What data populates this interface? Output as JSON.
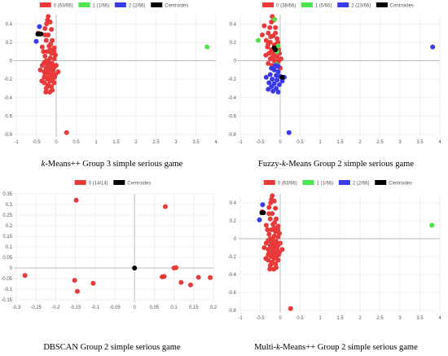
{
  "captions": [
    {
      "prefix": "",
      "italic": "k",
      "suffix": "-Means++ Group 3 simple serious game"
    },
    {
      "prefix": "Fuzzy-",
      "italic": "k",
      "suffix": "-Means Group 2 simple serious game"
    },
    {
      "prefix": "DBSCAN Group 2 simple serious game",
      "italic": "",
      "suffix": ""
    },
    {
      "prefix": "Multi-",
      "italic": "k",
      "suffix": "-Means++ Group 2 simple serious game"
    }
  ],
  "colors": {
    "cluster0": "#e83a3a",
    "cluster1": "#4ce64c",
    "cluster2": "#3a3ae8",
    "centroid": "#000000"
  },
  "chart_data": [
    {
      "type": "scatter",
      "title": "",
      "xlabel": "",
      "ylabel": "",
      "xlim": [
        -1,
        4
      ],
      "ylim": [
        -0.8,
        0.5
      ],
      "xticks": [
        -1,
        -0.5,
        0,
        0.5,
        1,
        1.5,
        2,
        2.5,
        3,
        3.5,
        4
      ],
      "yticks": [
        -0.8,
        -0.6,
        -0.4,
        -0.2,
        0,
        0.2,
        0.4
      ],
      "legend_position": "top-center",
      "grid": true,
      "series": [
        {
          "name": "0 (63/66)",
          "color": "#e83a3a",
          "points": [
            [
              -0.2,
              0.48
            ],
            [
              -0.22,
              0.44
            ],
            [
              -0.15,
              0.42
            ],
            [
              -0.28,
              0.35
            ],
            [
              -0.12,
              0.34
            ],
            [
              -0.2,
              0.28
            ],
            [
              -0.1,
              0.22
            ],
            [
              -0.25,
              0.22
            ],
            [
              -0.18,
              0.16
            ],
            [
              -0.05,
              0.14
            ],
            [
              -0.22,
              0.1
            ],
            [
              -0.12,
              0.08
            ],
            [
              -0.28,
              0.05
            ],
            [
              -0.15,
              0.03
            ],
            [
              -0.05,
              0.02
            ],
            [
              -0.2,
              0.0
            ],
            [
              -0.3,
              -0.02
            ],
            [
              -0.1,
              -0.03
            ],
            [
              -0.22,
              -0.05
            ],
            [
              -0.15,
              -0.06
            ],
            [
              -0.05,
              -0.07
            ],
            [
              -0.25,
              -0.08
            ],
            [
              -0.18,
              -0.1
            ],
            [
              -0.08,
              -0.11
            ],
            [
              -0.3,
              -0.12
            ],
            [
              -0.2,
              -0.13
            ],
            [
              -0.12,
              -0.15
            ],
            [
              -0.02,
              -0.15
            ],
            [
              -0.28,
              -0.16
            ],
            [
              -0.18,
              -0.18
            ],
            [
              -0.08,
              -0.19
            ],
            [
              -0.22,
              -0.2
            ],
            [
              -0.15,
              -0.22
            ],
            [
              -0.3,
              -0.24
            ],
            [
              -0.05,
              -0.24
            ],
            [
              -0.2,
              -0.26
            ],
            [
              -0.12,
              -0.28
            ],
            [
              -0.25,
              -0.3
            ],
            [
              -0.1,
              -0.32
            ],
            [
              -0.32,
              0.1
            ],
            [
              -0.35,
              -0.05
            ],
            [
              -0.4,
              -0.1
            ],
            [
              -0.26,
              -0.34
            ],
            [
              0.05,
              -0.12
            ],
            [
              -0.02,
              0.06
            ],
            [
              -0.35,
              0.15
            ],
            [
              -0.15,
              0.12
            ],
            [
              -0.1,
              -0.2
            ],
            [
              -0.25,
              0.0
            ],
            [
              -0.18,
              -0.02
            ],
            [
              0.0,
              -0.05
            ],
            [
              -0.08,
              -0.1
            ],
            [
              -0.3,
              -0.18
            ],
            [
              -0.22,
              -0.28
            ],
            [
              -0.14,
              0.18
            ],
            [
              -0.04,
              -0.18
            ],
            [
              -0.36,
              -0.22
            ],
            [
              -0.16,
              -0.34
            ],
            [
              -0.28,
              0.28
            ],
            [
              -0.06,
              0.1
            ],
            [
              -0.24,
              0.4
            ],
            [
              0.26,
              -0.78
            ],
            [
              -0.45,
              0.3
            ]
          ]
        },
        {
          "name": "1 (1/66)",
          "color": "#4ce64c",
          "points": [
            [
              3.78,
              0.15
            ]
          ]
        },
        {
          "name": "2 (2/66)",
          "color": "#3a3ae8",
          "points": [
            [
              -0.42,
              0.37
            ],
            [
              -0.5,
              0.21
            ]
          ]
        },
        {
          "name": "Centroides",
          "color": "#000000",
          "points": [
            [
              -0.46,
              0.29
            ],
            [
              -0.42,
              0.29
            ],
            [
              -0.38,
              0.29
            ]
          ]
        }
      ]
    },
    {
      "type": "scatter",
      "title": "",
      "xlabel": "",
      "ylabel": "",
      "xlim": [
        -1,
        4
      ],
      "ylim": [
        -0.8,
        0.5
      ],
      "xticks": [
        -1,
        -0.5,
        0,
        0.5,
        1,
        1.5,
        2,
        2.5,
        3,
        3.5,
        4
      ],
      "yticks": [
        -0.8,
        -0.6,
        -0.4,
        -0.2,
        0,
        0.2,
        0.4
      ],
      "legend_position": "top-center",
      "grid": true,
      "series": [
        {
          "name": "0 (38/66)",
          "color": "#e83a3a",
          "points": [
            [
              -0.2,
              0.48
            ],
            [
              -0.22,
              0.42
            ],
            [
              -0.12,
              0.36
            ],
            [
              -0.3,
              0.3
            ],
            [
              -0.18,
              0.27
            ],
            [
              -0.08,
              0.24
            ],
            [
              -0.25,
              0.2
            ],
            [
              -0.15,
              0.17
            ],
            [
              -0.05,
              0.14
            ],
            [
              -0.22,
              0.12
            ],
            [
              -0.12,
              0.1
            ],
            [
              -0.28,
              0.08
            ],
            [
              -0.02,
              0.08
            ],
            [
              -0.18,
              0.05
            ],
            [
              -0.08,
              0.04
            ],
            [
              -0.25,
              0.02
            ],
            [
              -0.15,
              0.0
            ],
            [
              -0.05,
              -0.01
            ],
            [
              -0.3,
              -0.03
            ],
            [
              -0.2,
              -0.05
            ],
            [
              -0.1,
              -0.06
            ],
            [
              0.0,
              -0.08
            ],
            [
              -0.4,
              0.38
            ],
            [
              -0.45,
              0.28
            ],
            [
              -0.35,
              0.22
            ],
            [
              -0.12,
              0.3
            ],
            [
              -0.32,
              0.15
            ],
            [
              -0.2,
              0.1
            ],
            [
              -0.1,
              0.18
            ],
            [
              -0.26,
              0.36
            ],
            [
              0.02,
              0.02
            ],
            [
              -0.06,
              0.2
            ],
            [
              -0.16,
              0.44
            ],
            [
              -0.36,
              0.06
            ],
            [
              -0.24,
              0.26
            ],
            [
              -0.14,
              0.06
            ],
            [
              -0.04,
              0.12
            ],
            [
              -0.3,
              0.18
            ]
          ]
        },
        {
          "name": "1 (5/66)",
          "color": "#4ce64c",
          "points": [
            [
              -0.14,
              0.45
            ],
            [
              -0.55,
              0.22
            ],
            [
              -0.05,
              0.16
            ],
            [
              -0.1,
              -0.04
            ],
            [
              -0.08,
              0.1
            ]
          ]
        },
        {
          "name": "2 (23/66)",
          "color": "#3a3ae8",
          "points": [
            [
              -0.15,
              -0.1
            ],
            [
              -0.05,
              -0.12
            ],
            [
              -0.25,
              -0.15
            ],
            [
              -0.1,
              -0.16
            ],
            [
              0.0,
              -0.17
            ],
            [
              -0.35,
              -0.18
            ],
            [
              -0.2,
              -0.2
            ],
            [
              -0.08,
              -0.21
            ],
            [
              -0.28,
              -0.24
            ],
            [
              -0.15,
              -0.25
            ],
            [
              -0.02,
              -0.26
            ],
            [
              -0.22,
              -0.28
            ],
            [
              -0.1,
              -0.3
            ],
            [
              -0.3,
              -0.31
            ],
            [
              -0.18,
              -0.33
            ],
            [
              -0.05,
              -0.34
            ],
            [
              0.05,
              -0.22
            ],
            [
              -0.12,
              -0.05
            ],
            [
              -0.22,
              -0.08
            ],
            [
              -0.05,
              -0.06
            ],
            [
              0.1,
              -0.18
            ],
            [
              3.82,
              0.15
            ],
            [
              0.22,
              -0.78
            ]
          ]
        },
        {
          "name": "Centroides",
          "color": "#000000",
          "points": [
            [
              -0.15,
              0.14
            ],
            [
              -0.12,
              0.12
            ],
            [
              0.05,
              -0.18
            ]
          ]
        }
      ]
    },
    {
      "type": "scatter",
      "title": "",
      "xlabel": "",
      "ylabel": "",
      "xlim": [
        -0.3,
        0.2
      ],
      "ylim": [
        -0.15,
        0.35
      ],
      "xticks": [
        -0.3,
        -0.25,
        -0.2,
        -0.15,
        -0.1,
        -0.05,
        0,
        0.05,
        0.1,
        0.15,
        0.2
      ],
      "yticks": [
        -0.15,
        -0.1,
        -0.05,
        0,
        0.05,
        0.1,
        0.15,
        0.2,
        0.25,
        0.3,
        0.35
      ],
      "legend_position": "top-center",
      "grid": true,
      "series": [
        {
          "name": "0 (14/14)",
          "color": "#e83a3a",
          "points": [
            [
              -0.148,
              0.32
            ],
            [
              0.078,
              0.29
            ],
            [
              -0.278,
              -0.035
            ],
            [
              -0.152,
              -0.058
            ],
            [
              -0.105,
              -0.072
            ],
            [
              -0.145,
              -0.11
            ],
            [
              0.075,
              -0.04
            ],
            [
              0.1,
              0.0
            ],
            [
              0.118,
              -0.068
            ],
            [
              0.142,
              -0.08
            ],
            [
              0.162,
              -0.044
            ],
            [
              0.192,
              -0.045
            ],
            [
              0.105,
              0.002
            ],
            [
              0.07,
              -0.042
            ]
          ]
        },
        {
          "name": "Centroides",
          "color": "#000000",
          "points": [
            [
              0.0,
              0.0
            ]
          ]
        }
      ]
    },
    {
      "type": "scatter",
      "title": "",
      "xlabel": "",
      "ylabel": "",
      "xlim": [
        -1,
        4
      ],
      "ylim": [
        -0.8,
        0.5
      ],
      "xticks": [
        -1,
        -0.5,
        0,
        0.5,
        1,
        1.5,
        2,
        2.5,
        3,
        3.5,
        4
      ],
      "yticks": [
        -0.8,
        -0.6,
        -0.4,
        -0.2,
        0,
        0.2,
        0.4
      ],
      "legend_position": "top-center",
      "grid": true,
      "series": [
        {
          "name": "0 (63/66)",
          "color": "#e83a3a",
          "points": [
            [
              -0.2,
              0.48
            ],
            [
              -0.22,
              0.44
            ],
            [
              -0.15,
              0.42
            ],
            [
              -0.28,
              0.35
            ],
            [
              -0.12,
              0.34
            ],
            [
              -0.2,
              0.28
            ],
            [
              -0.1,
              0.22
            ],
            [
              -0.25,
              0.22
            ],
            [
              -0.18,
              0.16
            ],
            [
              -0.05,
              0.14
            ],
            [
              -0.22,
              0.1
            ],
            [
              -0.12,
              0.08
            ],
            [
              -0.28,
              0.05
            ],
            [
              -0.15,
              0.03
            ],
            [
              -0.05,
              0.02
            ],
            [
              -0.2,
              0.0
            ],
            [
              -0.3,
              -0.02
            ],
            [
              -0.1,
              -0.03
            ],
            [
              -0.22,
              -0.05
            ],
            [
              -0.15,
              -0.06
            ],
            [
              -0.05,
              -0.07
            ],
            [
              -0.25,
              -0.08
            ],
            [
              -0.18,
              -0.1
            ],
            [
              -0.08,
              -0.11
            ],
            [
              -0.3,
              -0.12
            ],
            [
              -0.2,
              -0.13
            ],
            [
              -0.12,
              -0.15
            ],
            [
              -0.02,
              -0.15
            ],
            [
              -0.28,
              -0.16
            ],
            [
              -0.18,
              -0.18
            ],
            [
              -0.08,
              -0.19
            ],
            [
              -0.22,
              -0.2
            ],
            [
              -0.15,
              -0.22
            ],
            [
              -0.3,
              -0.24
            ],
            [
              -0.05,
              -0.24
            ],
            [
              -0.2,
              -0.26
            ],
            [
              -0.12,
              -0.28
            ],
            [
              -0.25,
              -0.3
            ],
            [
              -0.1,
              -0.32
            ],
            [
              -0.32,
              0.1
            ],
            [
              -0.35,
              -0.05
            ],
            [
              -0.4,
              -0.1
            ],
            [
              -0.26,
              -0.34
            ],
            [
              0.05,
              -0.12
            ],
            [
              -0.02,
              0.06
            ],
            [
              -0.35,
              0.15
            ],
            [
              -0.15,
              0.12
            ],
            [
              -0.1,
              -0.2
            ],
            [
              -0.25,
              0.0
            ],
            [
              -0.18,
              -0.02
            ],
            [
              0.0,
              -0.05
            ],
            [
              -0.08,
              -0.1
            ],
            [
              -0.3,
              -0.18
            ],
            [
              -0.22,
              -0.28
            ],
            [
              -0.14,
              0.18
            ],
            [
              -0.04,
              -0.18
            ],
            [
              -0.36,
              -0.22
            ],
            [
              -0.16,
              -0.34
            ],
            [
              -0.28,
              0.28
            ],
            [
              -0.06,
              0.1
            ],
            [
              -0.24,
              0.4
            ],
            [
              0.26,
              -0.78
            ],
            [
              -0.45,
              0.3
            ]
          ]
        },
        {
          "name": "1 (1/66)",
          "color": "#4ce64c",
          "points": [
            [
              3.8,
              0.15
            ]
          ]
        },
        {
          "name": "2 (2/66)",
          "color": "#3a3ae8",
          "points": [
            [
              -0.44,
              0.38
            ],
            [
              -0.52,
              0.21
            ]
          ]
        },
        {
          "name": "Centroides",
          "color": "#000000",
          "points": [
            [
              -0.46,
              0.29
            ],
            [
              -0.42,
              0.29
            ]
          ]
        }
      ]
    }
  ]
}
